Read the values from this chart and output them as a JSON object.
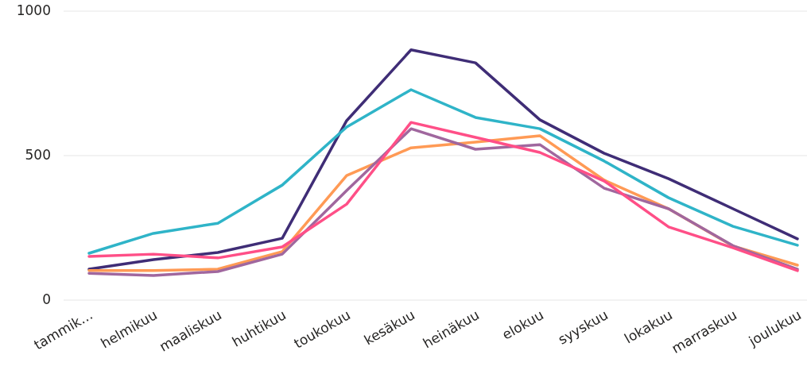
{
  "chart_data": {
    "type": "line",
    "categories": [
      "tammik…",
      "helmikuu",
      "maaliskuu",
      "huhtikuu",
      "toukokuu",
      "kesäkuu",
      "heinäkuu",
      "elokuu",
      "syyskuu",
      "lokakuu",
      "marraskuu",
      "joulukuu"
    ],
    "series": [
      {
        "color": "#3f2d76",
        "values": [
          107,
          140,
          165,
          214,
          621,
          866,
          821,
          624,
          508,
          420,
          316,
          212
        ]
      },
      {
        "color": "#2fb4c8",
        "values": [
          162,
          231,
          266,
          398,
          599,
          728,
          632,
          593,
          481,
          354,
          255,
          190
        ]
      },
      {
        "color": "#ff9a55",
        "values": [
          102,
          102,
          107,
          168,
          431,
          527,
          547,
          569,
          415,
          316,
          187,
          121
        ]
      },
      {
        "color": "#a0679e",
        "values": [
          93,
          85,
          99,
          159,
          379,
          593,
          522,
          538,
          387,
          316,
          188,
          107
        ]
      },
      {
        "color": "#ff4f87",
        "values": [
          151,
          159,
          146,
          184,
          332,
          615,
          563,
          511,
          412,
          253,
          181,
          102
        ]
      }
    ],
    "ylim": [
      0,
      1000
    ],
    "yticks": [
      0,
      500,
      1000
    ],
    "grid": "y"
  }
}
